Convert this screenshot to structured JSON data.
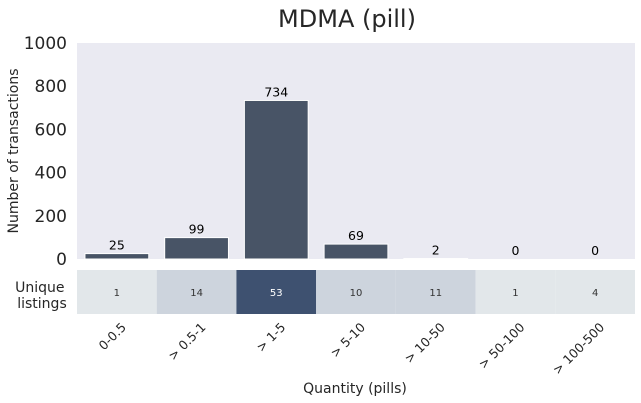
{
  "chart_data": {
    "type": "bar",
    "title": "MDMA (pill)",
    "xlabel": "Quantity (pills)",
    "ylabel": "Number of transactions",
    "ylim": [
      0,
      1000
    ],
    "yticks": [
      0,
      200,
      400,
      600,
      800,
      1000
    ],
    "grid": false,
    "categories": [
      "0-0.5",
      "> 0.5-1",
      "> 1-5",
      "> 5-10",
      "> 10-50",
      "> 50-100",
      "> 100-500"
    ],
    "values": [
      25,
      99,
      734,
      69,
      2,
      0,
      0
    ],
    "bar_color": "#485466",
    "plot_background": "#eaeaf2",
    "heatmap": {
      "label": "Unique\nlistings",
      "values": [
        1,
        14,
        53,
        10,
        11,
        1,
        4
      ],
      "colors": [
        "#e2e7ea",
        "#cdd4dd",
        "#3e5170",
        "#cdd4dd",
        "#cdd4dd",
        "#e2e7ea",
        "#e2e7ea"
      ]
    }
  }
}
